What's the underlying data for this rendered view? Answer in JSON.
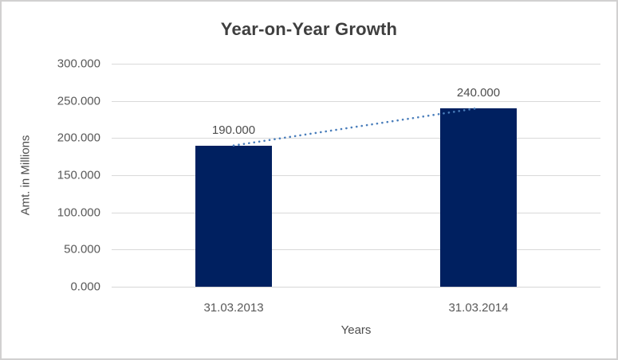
{
  "chart_data": {
    "type": "bar",
    "title": "Year-on-Year Growth",
    "xlabel": "Years",
    "ylabel": "Amt. in Millions",
    "categories": [
      "31.03.2013",
      "31.03.2014"
    ],
    "values": [
      190,
      240
    ],
    "value_labels": [
      "190.000",
      "240.000"
    ],
    "ylim": [
      0,
      300
    ],
    "ytick_step": 50,
    "ytick_labels": [
      "300.000",
      "250.000",
      "200.000",
      "150.000",
      "100.000",
      "50.000",
      "0.000"
    ],
    "grid": true,
    "legend": false,
    "trendline": {
      "type": "linear",
      "style": "dotted",
      "from_value": 190,
      "to_value": 240
    },
    "colors": {
      "bar": "#002060",
      "trendline": "#4a7ebb",
      "gridline": "#d9d9d9",
      "title_text": "#3f3f3f",
      "axis_text": "#595959"
    }
  }
}
